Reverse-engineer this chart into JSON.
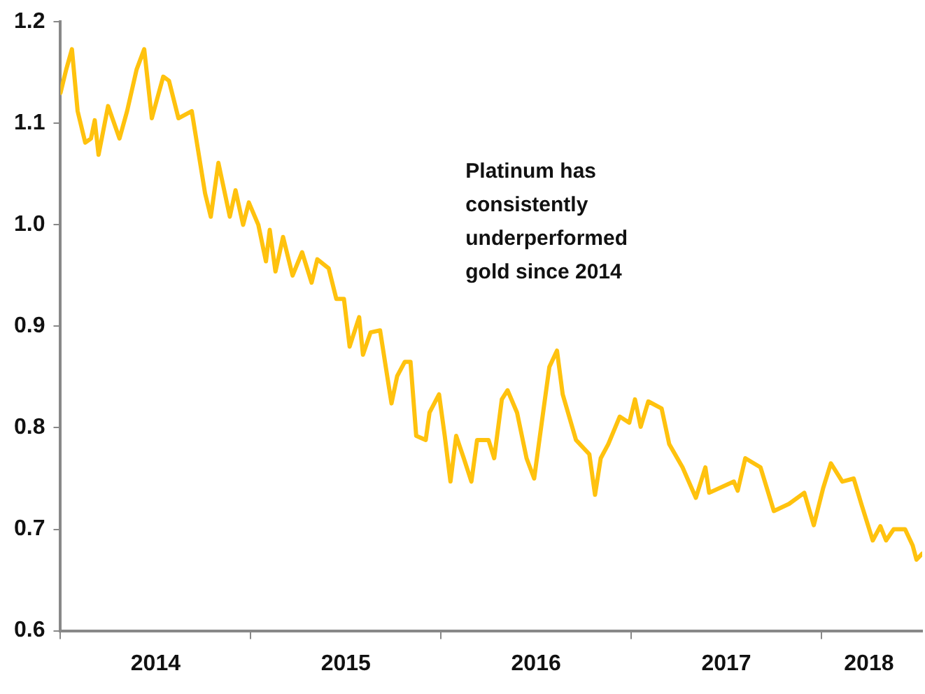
{
  "chart_data": {
    "type": "line",
    "annotations": [
      "Platinum has\nconsistently\nunderperformed\ngold since 2014"
    ],
    "x": [
      2014.0,
      2014.03,
      2014.06,
      2014.09,
      2014.13,
      2014.16,
      2014.18,
      2014.2,
      2014.25,
      2014.31,
      2014.35,
      2014.4,
      2014.44,
      2014.48,
      2014.54,
      2014.57,
      2014.62,
      2014.69,
      2014.76,
      2014.79,
      2014.83,
      2014.89,
      2014.92,
      2014.96,
      2014.99,
      2015.04,
      2015.08,
      2015.1,
      2015.13,
      2015.17,
      2015.22,
      2015.27,
      2015.32,
      2015.35,
      2015.41,
      2015.45,
      2015.49,
      2015.52,
      2015.57,
      2015.59,
      2015.63,
      2015.68,
      2015.71,
      2015.74,
      2015.77,
      2015.81,
      2015.84,
      2015.87,
      2015.92,
      2015.94,
      2015.99,
      2016.02,
      2016.05,
      2016.08,
      2016.12,
      2016.16,
      2016.19,
      2016.25,
      2016.28,
      2016.32,
      2016.35,
      2016.4,
      2016.45,
      2016.49,
      2016.54,
      2016.57,
      2016.61,
      2016.64,
      2016.71,
      2016.78,
      2016.81,
      2016.84,
      2016.88,
      2016.94,
      2016.99,
      2017.02,
      2017.05,
      2017.09,
      2017.16,
      2017.2,
      2017.27,
      2017.34,
      2017.39,
      2017.41,
      2017.54,
      2017.56,
      2017.6,
      2017.68,
      2017.75,
      2017.83,
      2017.91,
      2017.96,
      2018.01,
      2018.05,
      2018.11,
      2018.17,
      2018.21,
      2018.27,
      2018.31,
      2018.34,
      2018.38,
      2018.44,
      2018.48,
      2018.5,
      2018.53
    ],
    "series": [
      {
        "color": "#ffc20e",
        "values": [
          1.13,
          1.153,
          1.173,
          1.112,
          1.081,
          1.085,
          1.103,
          1.069,
          1.117,
          1.085,
          1.112,
          1.153,
          1.173,
          1.105,
          1.146,
          1.142,
          1.105,
          1.112,
          1.031,
          1.008,
          1.061,
          1.008,
          1.034,
          1.0,
          1.022,
          1.0,
          0.964,
          0.995,
          0.954,
          0.988,
          0.95,
          0.973,
          0.943,
          0.966,
          0.957,
          0.927,
          0.927,
          0.88,
          0.909,
          0.872,
          0.894,
          0.896,
          0.86,
          0.824,
          0.851,
          0.865,
          0.865,
          0.792,
          0.788,
          0.815,
          0.833,
          0.792,
          0.747,
          0.792,
          0.77,
          0.747,
          0.788,
          0.788,
          0.77,
          0.828,
          0.837,
          0.815,
          0.77,
          0.75,
          0.819,
          0.86,
          0.876,
          0.833,
          0.788,
          0.774,
          0.734,
          0.77,
          0.784,
          0.811,
          0.805,
          0.828,
          0.801,
          0.826,
          0.819,
          0.784,
          0.761,
          0.731,
          0.761,
          0.736,
          0.747,
          0.738,
          0.77,
          0.761,
          0.718,
          0.725,
          0.736,
          0.704,
          0.741,
          0.765,
          0.747,
          0.75,
          0.725,
          0.689,
          0.703,
          0.689,
          0.7,
          0.7,
          0.684,
          0.67,
          0.676
        ]
      }
    ],
    "xlim": [
      2014,
      2018.53
    ],
    "xticks": [
      {
        "value": 2014,
        "label": null
      },
      {
        "value": 2014.5,
        "label": "2014"
      },
      {
        "value": 2015,
        "label": null
      },
      {
        "value": 2015.5,
        "label": "2015"
      },
      {
        "value": 2016,
        "label": null
      },
      {
        "value": 2016.5,
        "label": "2016"
      },
      {
        "value": 2017,
        "label": null
      },
      {
        "value": 2017.5,
        "label": "2017"
      },
      {
        "value": 2018,
        "label": null
      },
      {
        "value": 2018.25,
        "label": "2018"
      }
    ],
    "ylim": [
      0.6,
      1.2
    ],
    "yticks": [
      0.6,
      0.7,
      0.8,
      0.9,
      {
        "value": 1,
        "label": "1.0"
      },
      1.1,
      1.2
    ],
    "grid": false,
    "legend": false,
    "marker": "none",
    "line_style": "solid"
  }
}
